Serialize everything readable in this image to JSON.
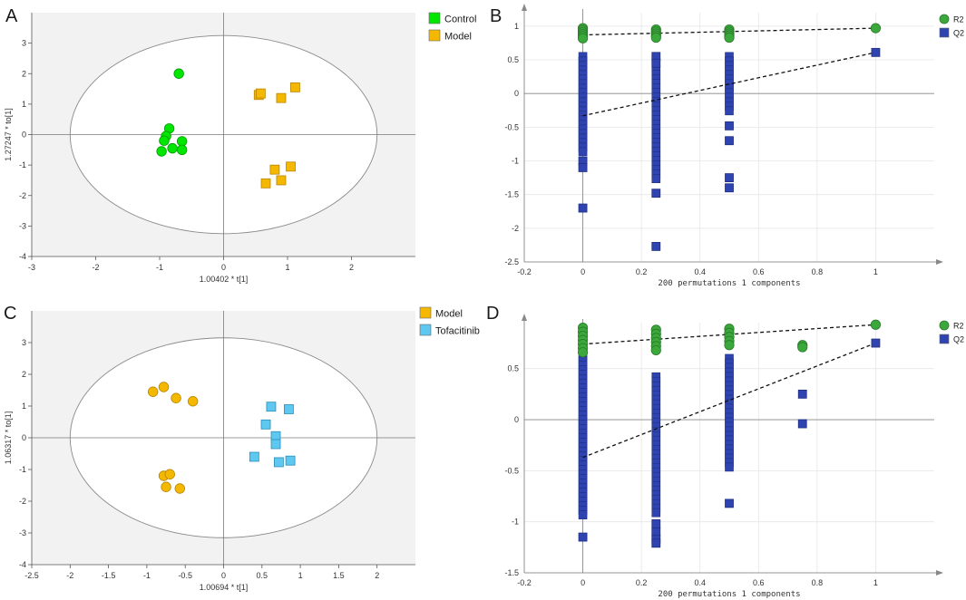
{
  "figure": {
    "panel_labels": [
      "A",
      "B",
      "C",
      "D"
    ]
  },
  "chart_data": [
    {
      "id": "A",
      "type": "scatter",
      "xlabel": "1.00402 * t[1]",
      "ylabel": "1.27247 * to[1]",
      "xlim": [
        -3,
        3
      ],
      "ylim": [
        -4,
        4
      ],
      "xticks": [
        -3,
        -2,
        -1,
        0,
        1,
        2
      ],
      "yticks": [
        -4,
        -3,
        -2,
        -1,
        0,
        1,
        2,
        3
      ],
      "ellipse": {
        "rx": 2.4,
        "ry": 3.25
      },
      "legend": [
        {
          "label": "Control",
          "color": "#00e600",
          "shape": "square"
        },
        {
          "label": "Model",
          "color": "#f5b800",
          "shape": "square"
        }
      ],
      "series": [
        {
          "name": "Control",
          "marker": "circle",
          "color": "#00e600",
          "points": [
            [
              -0.7,
              2.0
            ],
            [
              -0.85,
              0.2
            ],
            [
              -0.9,
              -0.05
            ],
            [
              -0.93,
              -0.2
            ],
            [
              -0.65,
              -0.22
            ],
            [
              -0.8,
              -0.45
            ],
            [
              -0.97,
              -0.55
            ],
            [
              -0.65,
              -0.5
            ]
          ]
        },
        {
          "name": "Model",
          "marker": "square",
          "color": "#f5b800",
          "points": [
            [
              0.55,
              1.3
            ],
            [
              0.58,
              1.35
            ],
            [
              0.9,
              1.2
            ],
            [
              1.12,
              1.55
            ],
            [
              0.8,
              -1.15
            ],
            [
              1.05,
              -1.05
            ],
            [
              0.9,
              -1.5
            ],
            [
              0.66,
              -1.6
            ]
          ]
        }
      ]
    },
    {
      "id": "B",
      "type": "scatter",
      "xlabel": "200 permutations 1 components",
      "xlim": [
        -0.2,
        1.2
      ],
      "ylim": [
        -2.5,
        1.2
      ],
      "xticks": [
        -0.2,
        0,
        0.2,
        0.4,
        0.6,
        0.8,
        1
      ],
      "yticks": [
        -2.5,
        -2,
        -1.5,
        -1,
        -0.5,
        0,
        0.5,
        1
      ],
      "legend": [
        {
          "label": "R2",
          "color": "#3aa83a",
          "shape": "circle"
        },
        {
          "label": "Q2",
          "color": "#2f44b0",
          "shape": "square"
        }
      ],
      "series": [
        {
          "name": "R2",
          "marker": "circle",
          "color": "#3aa83a",
          "points": [
            [
              0,
              0.97
            ],
            [
              0,
              0.94
            ],
            [
              0,
              0.91
            ],
            [
              0,
              0.88
            ],
            [
              0,
              0.85
            ],
            [
              0,
              0.82
            ],
            [
              0.25,
              0.95
            ],
            [
              0.25,
              0.92
            ],
            [
              0.25,
              0.89
            ],
            [
              0.25,
              0.86
            ],
            [
              0.25,
              0.83
            ],
            [
              0.5,
              0.95
            ],
            [
              0.5,
              0.92
            ],
            [
              0.5,
              0.89
            ],
            [
              0.5,
              0.86
            ],
            [
              0.5,
              0.83
            ],
            [
              1,
              0.97
            ]
          ]
        },
        {
          "name": "Q2",
          "marker": "square",
          "color": "#2f44b0",
          "bands": [
            {
              "x": 0,
              "from": -0.9,
              "to": 0.55
            },
            {
              "x": 0.25,
              "from": -1.3,
              "to": 0.35
            },
            {
              "x": 0.5,
              "from": -0.3,
              "to": 0.55
            }
          ],
          "points": [
            [
              0,
              -1.0
            ],
            [
              0,
              -1.1
            ],
            [
              0,
              -1.7
            ],
            [
              0.25,
              0.55
            ],
            [
              0.25,
              0.45
            ],
            [
              0.25,
              -1.48
            ],
            [
              0.25,
              -2.27
            ],
            [
              0.5,
              -0.48
            ],
            [
              0.5,
              -0.7
            ],
            [
              0.5,
              -1.25
            ],
            [
              0.5,
              -1.4
            ],
            [
              1,
              0.61
            ]
          ]
        }
      ],
      "lines": [
        {
          "name": "R2 trend",
          "from": [
            0,
            0.87
          ],
          "to": [
            1,
            0.97
          ]
        },
        {
          "name": "Q2 trend",
          "from": [
            0,
            -0.33
          ],
          "to": [
            1,
            0.61
          ]
        }
      ]
    },
    {
      "id": "C",
      "type": "scatter",
      "xlabel": "1.00694 * t[1]",
      "ylabel": "1.06317 * to[1]",
      "xlim": [
        -2.5,
        2.5
      ],
      "ylim": [
        -4,
        4
      ],
      "xticks": [
        -2.5,
        -2,
        -1.5,
        -1,
        -0.5,
        0,
        0.5,
        1,
        1.5,
        2
      ],
      "yticks": [
        -4,
        -3,
        -2,
        -1,
        0,
        1,
        2,
        3
      ],
      "ellipse": {
        "rx": 2.0,
        "ry": 3.15
      },
      "legend": [
        {
          "label": "Model",
          "color": "#f5b800",
          "shape": "square"
        },
        {
          "label": "Tofacitinib",
          "color": "#5ec8f0",
          "shape": "square"
        }
      ],
      "series": [
        {
          "name": "Model",
          "marker": "circle",
          "color": "#f5b800",
          "points": [
            [
              -0.92,
              1.45
            ],
            [
              -0.78,
              1.6
            ],
            [
              -0.62,
              1.25
            ],
            [
              -0.4,
              1.15
            ],
            [
              -0.78,
              -1.2
            ],
            [
              -0.7,
              -1.15
            ],
            [
              -0.75,
              -1.55
            ],
            [
              -0.57,
              -1.6
            ]
          ]
        },
        {
          "name": "Tofacitinib",
          "marker": "square",
          "color": "#5ec8f0",
          "points": [
            [
              0.62,
              0.98
            ],
            [
              0.85,
              0.9
            ],
            [
              0.55,
              0.42
            ],
            [
              0.68,
              0.05
            ],
            [
              0.68,
              -0.2
            ],
            [
              0.4,
              -0.6
            ],
            [
              0.72,
              -0.77
            ],
            [
              0.87,
              -0.72
            ]
          ]
        }
      ]
    },
    {
      "id": "D",
      "type": "scatter",
      "xlabel": "200 permutations 1 components",
      "xlim": [
        -0.2,
        1.2
      ],
      "ylim": [
        -1.5,
        0.95
      ],
      "xticks": [
        -0.2,
        0,
        0.2,
        0.4,
        0.6,
        0.8,
        1
      ],
      "yticks": [
        -1.5,
        -1,
        -0.5,
        0,
        0.5
      ],
      "legend": [
        {
          "label": "R2",
          "color": "#3aa83a",
          "shape": "circle"
        },
        {
          "label": "Q2",
          "color": "#2f44b0",
          "shape": "square"
        }
      ],
      "series": [
        {
          "name": "R2",
          "marker": "circle",
          "color": "#3aa83a",
          "points": [
            [
              0,
              0.9
            ],
            [
              0,
              0.86
            ],
            [
              0,
              0.82
            ],
            [
              0,
              0.78
            ],
            [
              0,
              0.74
            ],
            [
              0,
              0.7
            ],
            [
              0,
              0.66
            ],
            [
              0.25,
              0.88
            ],
            [
              0.25,
              0.84
            ],
            [
              0.25,
              0.8
            ],
            [
              0.25,
              0.76
            ],
            [
              0.25,
              0.72
            ],
            [
              0.25,
              0.68
            ],
            [
              0.5,
              0.89
            ],
            [
              0.5,
              0.85
            ],
            [
              0.5,
              0.81
            ],
            [
              0.5,
              0.77
            ],
            [
              0.5,
              0.73
            ],
            [
              0.75,
              0.73
            ],
            [
              0.75,
              0.71
            ],
            [
              1,
              0.93
            ]
          ]
        },
        {
          "name": "Q2",
          "marker": "square",
          "color": "#2f44b0",
          "bands": [
            {
              "x": 0,
              "from": -0.95,
              "to": 0.62
            },
            {
              "x": 0.25,
              "from": -0.95,
              "to": 0.42
            },
            {
              "x": 0.5,
              "from": -0.5,
              "to": 0.6
            }
          ],
          "points": [
            [
              0,
              -1.15
            ],
            [
              0.25,
              -1.02
            ],
            [
              0.25,
              -1.1
            ],
            [
              0.25,
              -1.17
            ],
            [
              0.25,
              -1.21
            ],
            [
              0.5,
              -0.82
            ],
            [
              0.75,
              0.25
            ],
            [
              0.75,
              -0.04
            ],
            [
              1,
              0.75
            ]
          ]
        }
      ],
      "lines": [
        {
          "name": "R2 trend",
          "from": [
            0,
            0.74
          ],
          "to": [
            1,
            0.93
          ]
        },
        {
          "name": "Q2 trend",
          "from": [
            0,
            -0.37
          ],
          "to": [
            1,
            0.75
          ]
        }
      ]
    }
  ]
}
